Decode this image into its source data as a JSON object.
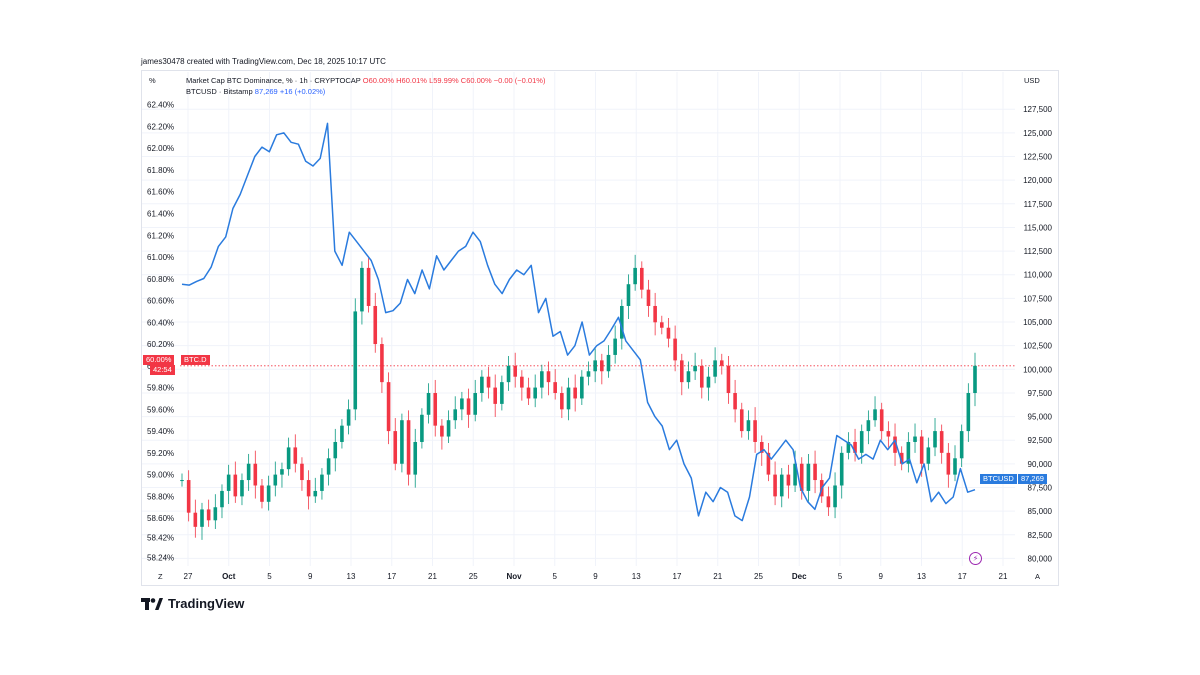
{
  "credit": "james30478 created with TradingView.com, Dec 18, 2025 10:17 UTC",
  "corners": {
    "left_unit": "%",
    "right_unit": "USD",
    "bottom_left": "Z",
    "bottom_right": "A"
  },
  "legend": {
    "line1_name": "Market Cap BTC Dominance, % · 1h · CRYPTOCAP",
    "line1_o": "O60.00%",
    "line1_h": "H60.01%",
    "line1_l": "L59.99%",
    "line1_c": "C60.00%",
    "line1_chg": "−0.00 (−0.01%)",
    "line2_name": "BTCUSD · Bitstamp",
    "line2_val": "87,269",
    "line2_chg": "+16 (+0.02%)"
  },
  "tags": {
    "btcd_value": "60.00%",
    "btcd_name": "BTC.D",
    "btcd_timer": "42:54",
    "btcusd_name": "BTCUSD",
    "btcusd_value": "87,269"
  },
  "brand": "TradingView",
  "colors": {
    "btcd_line": "#2a7bde",
    "btcusd_up": "#089981",
    "btcusd_down": "#f23645",
    "tag_red": "#f23645",
    "tag_blue": "#2a7bde",
    "grid": "#f0f3fa"
  },
  "chart_data": {
    "type": "line",
    "x_tick_labels": [
      "27",
      "Oct",
      "5",
      "9",
      "13",
      "17",
      "21",
      "25",
      "Nov",
      "5",
      "9",
      "13",
      "17",
      "21",
      "25",
      "Dec",
      "5",
      "9",
      "13",
      "17",
      "21"
    ],
    "left_axis": {
      "unit": "%",
      "ticks": [
        58.24,
        58.42,
        58.6,
        58.8,
        59.0,
        59.2,
        59.4,
        59.6,
        59.8,
        60.0,
        60.2,
        60.4,
        60.6,
        60.8,
        61.0,
        61.2,
        61.4,
        61.6,
        61.8,
        62.0,
        62.2,
        62.4
      ],
      "tick_labels": [
        "58.24%",
        "58.42%",
        "58.60%",
        "58.80%",
        "59.00%",
        "59.20%",
        "59.40%",
        "59.60%",
        "59.80%",
        "60.00%",
        "60.20%",
        "60.40%",
        "60.60%",
        "60.80%",
        "61.00%",
        "61.20%",
        "61.40%",
        "61.60%",
        "61.80%",
        "62.00%",
        "62.20%",
        "62.40%"
      ],
      "range": [
        58.16,
        62.48
      ]
    },
    "right_axis": {
      "unit": "USD",
      "ticks": [
        80000,
        82500,
        85000,
        87500,
        90000,
        92500,
        95000,
        97500,
        100000,
        102500,
        105000,
        107500,
        110000,
        112500,
        115000,
        117500,
        120000,
        122500,
        125000,
        127500
      ],
      "tick_labels": [
        "80,000",
        "82,500",
        "85,000",
        "87,500",
        "90,000",
        "92,500",
        "95,000",
        "97,500",
        "100,000",
        "102,500",
        "105,000",
        "107,500",
        "110,000",
        "112,500",
        "115,000",
        "117,500",
        "120,000",
        "122,500",
        "125,000",
        "127,500"
      ],
      "range": [
        79200,
        128900
      ]
    },
    "series": [
      {
        "name": "BTCUSD · Bitstamp",
        "axis": "right",
        "style": "line",
        "points": [
          [
            0,
            109000
          ],
          [
            1,
            108900
          ],
          [
            2,
            109300
          ],
          [
            3,
            109600
          ],
          [
            4,
            110800
          ],
          [
            5,
            113000
          ],
          [
            6,
            114000
          ],
          [
            7,
            117000
          ],
          [
            8,
            118500
          ],
          [
            9,
            120500
          ],
          [
            10,
            122500
          ],
          [
            11,
            123500
          ],
          [
            12,
            123000
          ],
          [
            13,
            124800
          ],
          [
            14,
            125000
          ],
          [
            15,
            124000
          ],
          [
            16,
            123800
          ],
          [
            17,
            122000
          ],
          [
            18,
            121500
          ],
          [
            19,
            122300
          ],
          [
            20,
            126000
          ],
          [
            21,
            112500
          ],
          [
            22,
            111000
          ],
          [
            23,
            114500
          ],
          [
            24,
            113500
          ],
          [
            25,
            112500
          ],
          [
            26,
            111500
          ],
          [
            27,
            109500
          ],
          [
            28,
            106000
          ],
          [
            29,
            106200
          ],
          [
            30,
            107000
          ],
          [
            31,
            109500
          ],
          [
            32,
            108000
          ],
          [
            33,
            110500
          ],
          [
            34,
            108500
          ],
          [
            35,
            112000
          ],
          [
            36,
            110500
          ],
          [
            37,
            111500
          ],
          [
            38,
            112500
          ],
          [
            39,
            113000
          ],
          [
            40,
            114500
          ],
          [
            41,
            113500
          ],
          [
            42,
            111000
          ],
          [
            43,
            109000
          ],
          [
            44,
            108000
          ],
          [
            45,
            109500
          ],
          [
            46,
            110500
          ],
          [
            47,
            110000
          ],
          [
            48,
            111000
          ],
          [
            49,
            106000
          ],
          [
            50,
            107500
          ],
          [
            51,
            103500
          ],
          [
            52,
            104000
          ],
          [
            53,
            101500
          ],
          [
            54,
            102500
          ],
          [
            55,
            105000
          ],
          [
            56,
            101500
          ],
          [
            57,
            102500
          ],
          [
            58,
            103000
          ],
          [
            59,
            104200
          ],
          [
            60,
            105500
          ],
          [
            61,
            103000
          ],
          [
            62,
            102000
          ],
          [
            63,
            101000
          ],
          [
            64,
            96500
          ],
          [
            65,
            95000
          ],
          [
            66,
            94000
          ],
          [
            67,
            91500
          ],
          [
            68,
            92500
          ],
          [
            69,
            90000
          ],
          [
            70,
            88500
          ],
          [
            71,
            84500
          ],
          [
            72,
            87000
          ],
          [
            73,
            86000
          ],
          [
            74,
            87500
          ],
          [
            75,
            87000
          ],
          [
            76,
            84500
          ],
          [
            77,
            84000
          ],
          [
            78,
            86500
          ],
          [
            79,
            91000
          ],
          [
            80,
            91500
          ],
          [
            81,
            90500
          ],
          [
            82,
            91500
          ],
          [
            83,
            92500
          ],
          [
            84,
            91500
          ],
          [
            85,
            87500
          ],
          [
            86,
            86000
          ],
          [
            87,
            85200
          ],
          [
            88,
            87500
          ],
          [
            89,
            88500
          ],
          [
            90,
            93000
          ],
          [
            91,
            92500
          ],
          [
            92,
            92000
          ],
          [
            93,
            90500
          ],
          [
            94,
            91000
          ],
          [
            95,
            90500
          ],
          [
            96,
            92500
          ],
          [
            97,
            91500
          ],
          [
            98,
            92500
          ],
          [
            99,
            90000
          ],
          [
            100,
            90500
          ],
          [
            101,
            88000
          ],
          [
            102,
            90000
          ],
          [
            103,
            86000
          ],
          [
            104,
            87000
          ],
          [
            105,
            85800
          ],
          [
            106,
            86500
          ],
          [
            107,
            89500
          ],
          [
            108,
            87000
          ],
          [
            109,
            87269
          ]
        ]
      },
      {
        "name": "Market Cap BTC Dominance, % · 1h · CRYPTOCAP",
        "axis": "left",
        "style": "candles",
        "closes": [
          58.95,
          58.65,
          58.52,
          58.68,
          58.58,
          58.7,
          58.85,
          59.0,
          58.8,
          58.95,
          59.1,
          58.9,
          58.75,
          58.9,
          59.0,
          59.05,
          59.25,
          59.1,
          58.95,
          58.8,
          58.85,
          59.0,
          59.15,
          59.3,
          59.45,
          59.6,
          60.5,
          60.9,
          60.55,
          60.2,
          59.85,
          59.4,
          59.1,
          59.5,
          59.0,
          59.3,
          59.55,
          59.75,
          59.45,
          59.35,
          59.5,
          59.6,
          59.7,
          59.55,
          59.75,
          59.9,
          59.8,
          59.65,
          59.85,
          60.0,
          59.9,
          59.8,
          59.7,
          59.8,
          59.95,
          59.85,
          59.75,
          59.6,
          59.8,
          59.7,
          59.9,
          59.95,
          60.05,
          59.95,
          60.1,
          60.25,
          60.55,
          60.75,
          60.9,
          60.7,
          60.55,
          60.4,
          60.35,
          60.25,
          60.05,
          59.85,
          59.95,
          60.0,
          59.8,
          59.9,
          60.05,
          60.0,
          59.75,
          59.6,
          59.4,
          59.5,
          59.3,
          59.2,
          59.0,
          58.8,
          59.0,
          58.9,
          59.1,
          58.85,
          59.1,
          58.95,
          58.8,
          58.7,
          58.9,
          59.2,
          59.3,
          59.2,
          59.4,
          59.5,
          59.6,
          59.4,
          59.35,
          59.2,
          59.1,
          59.3,
          59.35,
          59.1,
          59.25,
          59.4,
          59.2,
          59.0,
          59.15,
          59.4,
          59.75,
          60.0
        ]
      }
    ],
    "markers": {
      "btcd_last": 60.0,
      "btcusd_last": 87269
    },
    "grid": true,
    "legend_position": "top-left"
  }
}
